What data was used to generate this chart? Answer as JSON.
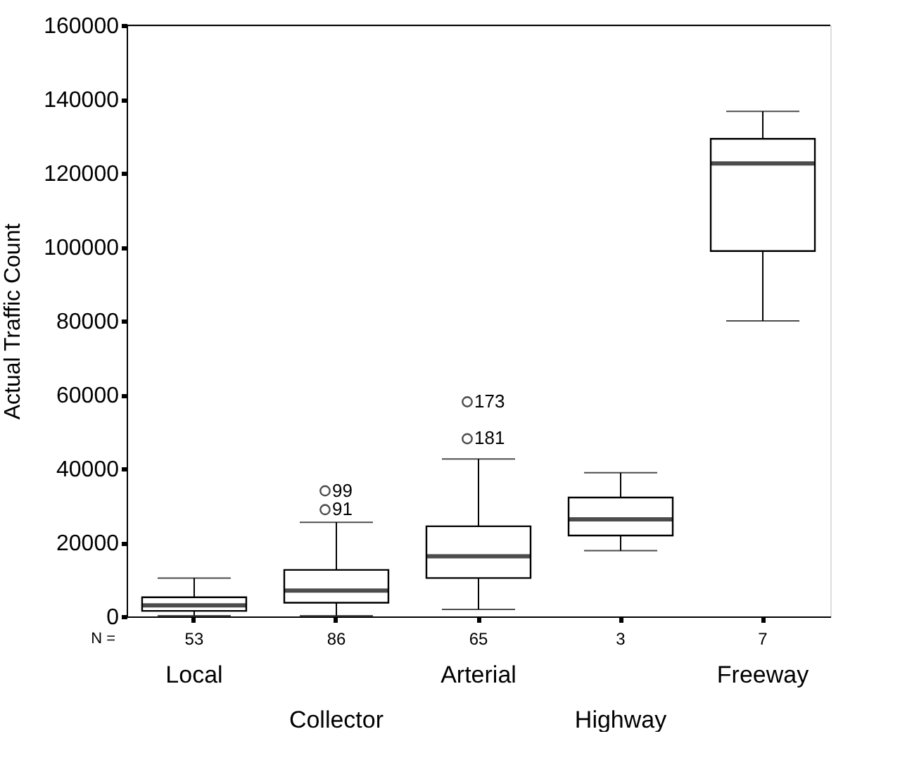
{
  "chart_data": {
    "type": "box",
    "ylabel": "Actual Traffic Count",
    "categories": [
      "Local",
      "Collector",
      "Arterial",
      "Highway",
      "Freeway"
    ],
    "boxes": [
      {
        "low": 200,
        "q1": 1500,
        "median": 3000,
        "q3": 5200,
        "high": 10400
      },
      {
        "low": 200,
        "q1": 3700,
        "median": 7000,
        "q3": 12600,
        "high": 25500,
        "outliers": [
          34000,
          28900
        ]
      },
      {
        "low": 1900,
        "q1": 10400,
        "median": 16300,
        "q3": 24400,
        "high": 42600,
        "outliers": [
          58100,
          48100
        ]
      },
      {
        "low": 17800,
        "q1": 21900,
        "median": 26300,
        "q3": 32200,
        "high": 38900
      },
      {
        "low": 80000,
        "q1": 98900,
        "median": 122600,
        "q3": 129300,
        "high": 136700
      }
    ],
    "ylim": [
      0,
      160000
    ],
    "yticks": [
      0,
      20000,
      40000,
      60000,
      80000,
      100000,
      120000,
      140000,
      160000
    ],
    "grid": false,
    "annotations": [
      "N =",
      "53",
      "86",
      "65",
      "3",
      "7",
      "99",
      "91",
      "173",
      "181"
    ]
  }
}
